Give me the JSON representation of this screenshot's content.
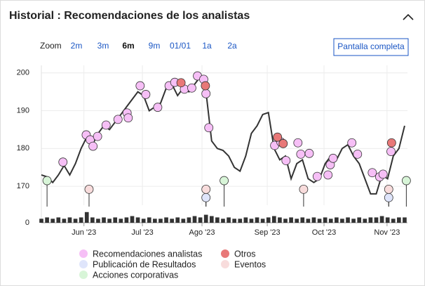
{
  "header": {
    "title": "Historial : Recomendaciones de los analistas"
  },
  "zoom": {
    "label": "Zoom",
    "options": [
      "2m",
      "3m",
      "6m",
      "9m",
      "01/01",
      "1a",
      "2a"
    ],
    "selected": 2
  },
  "fullscreen": "Pantalla completa",
  "chart_data": {
    "type": "line",
    "color": "#333333",
    "grid": true,
    "xlim": [
      0,
      64.5
    ],
    "xticks": [
      {
        "value": 7.5,
        "label": "Jun '23"
      },
      {
        "value": 17.8,
        "label": "Jul '23"
      },
      {
        "value": 28.3,
        "label": "Ago '23"
      },
      {
        "value": 39.8,
        "label": "Sep '23"
      },
      {
        "value": 49.8,
        "label": "Oct '23"
      },
      {
        "value": 60.9,
        "label": "Nov '23"
      }
    ],
    "ylim": [
      165,
      202
    ],
    "yticks": [
      170,
      180,
      190,
      200
    ],
    "values": [
      173,
      172.5,
      171,
      173,
      175.5,
      173,
      176,
      180,
      183,
      181,
      184,
      186,
      185,
      187,
      189,
      191,
      193,
      195,
      194,
      190,
      191,
      192,
      196,
      197,
      194,
      196,
      195,
      197,
      199,
      195,
      182,
      180,
      179.5,
      178,
      175,
      174,
      178,
      184,
      186,
      189,
      189.5,
      180,
      177,
      178,
      172,
      176,
      177,
      172,
      171,
      172,
      176,
      178,
      177,
      180,
      181,
      178,
      176,
      172,
      168,
      168,
      173,
      172,
      178,
      180,
      186
    ],
    "volume": {
      "color": "#333333",
      "ylim": [
        0,
        10
      ],
      "yticks": [
        0
      ],
      "values": [
        3,
        4,
        3,
        4,
        3,
        4,
        3,
        4,
        8,
        4,
        3,
        4,
        3,
        4,
        3,
        4,
        5,
        4,
        3,
        4,
        3,
        3,
        4,
        3,
        4,
        3,
        4,
        5,
        4,
        6,
        5,
        4,
        3,
        4,
        3,
        3,
        4,
        3,
        4,
        3,
        4,
        5,
        4,
        3,
        4,
        3,
        4,
        3,
        4,
        3,
        4,
        3,
        4,
        3,
        4,
        3,
        4,
        3,
        4,
        4,
        5,
        4,
        3,
        4,
        4
      ]
    },
    "events": [
      {
        "name": "Recomendaciones analistas",
        "color": "#f6bff6",
        "x": [
          3.8,
          7.9,
          8.6,
          9.1,
          9.9,
          11.4,
          13.5,
          15.1,
          15.3,
          17.4,
          18.4,
          20.5,
          22.5,
          23.5,
          25.2,
          26.5,
          27.5,
          28.6,
          29.0,
          29.5,
          41.1,
          42.2,
          43.1,
          45.2,
          45.7,
          47.2,
          48.6,
          50.5,
          50.9,
          51.4,
          54.7,
          55.7,
          58.3,
          59.6,
          60.2,
          61.6
        ],
        "y": [
          176.4,
          183.6,
          182.3,
          180.6,
          183.2,
          186.2,
          187.7,
          189.4,
          188.1,
          196.6,
          194.3,
          190.9,
          196.6,
          197.5,
          195.7,
          196,
          199.2,
          198.3,
          194.5,
          185.5,
          180.8,
          181.7,
          176.8,
          181.5,
          178.5,
          178.7,
          172.6,
          173,
          175.7,
          177.4,
          181.5,
          178.5,
          173.6,
          172.5,
          173.2,
          179.2
        ]
      },
      {
        "name": "Otros",
        "color": "#e87878",
        "x": [
          24.6,
          28.9,
          41.6,
          42.6,
          61.7
        ],
        "y": [
          197.4,
          196.6,
          183,
          181.3,
          181.5
        ]
      },
      {
        "name": "Publicación de Resultados",
        "color": "#dfe5fb",
        "stem": true,
        "x": [
          29.0,
          61.2
        ],
        "y": [
          167,
          167
        ]
      },
      {
        "name": "Eventos",
        "color": "#f8dcdc",
        "stem": true,
        "x": [
          8.4,
          29.0,
          46.2,
          61.2
        ],
        "y": [
          169.2,
          169.2,
          169.2,
          169.2
        ]
      },
      {
        "name": "Acciones corporativas",
        "color": "#d8f5d8",
        "stem": true,
        "x": [
          1.0,
          32.2,
          64.3
        ],
        "y": [
          171.5,
          171.5,
          171.5
        ]
      }
    ]
  }
}
